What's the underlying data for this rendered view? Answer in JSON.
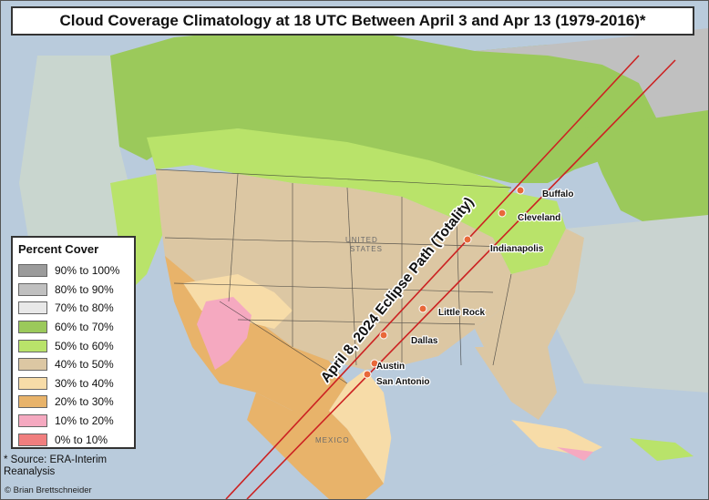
{
  "title": "Cloud Coverage Climatology at 18 UTC Between April 3 and Apr 13 (1979-2016)*",
  "legend": {
    "title": "Percent Cover",
    "items": [
      {
        "label": "90% to 100%",
        "color": "#9b9b9b"
      },
      {
        "label": "80% to 90%",
        "color": "#c0c0c0"
      },
      {
        "label": "70% to 80%",
        "color": "#e8e8e8"
      },
      {
        "label": "60% to 70%",
        "color": "#9bc95b"
      },
      {
        "label": "50% to 60%",
        "color": "#b9e36a"
      },
      {
        "label": "40% to 50%",
        "color": "#dcc7a3"
      },
      {
        "label": "30% to 40%",
        "color": "#f7dca8"
      },
      {
        "label": "20% to 30%",
        "color": "#e8b36a"
      },
      {
        "label": "10% to 20%",
        "color": "#f5a9c0"
      },
      {
        "label": "0% to 10%",
        "color": "#f07e7e"
      }
    ]
  },
  "source": "* Source: ERA-Interim Reanalysis",
  "credit": "© Brian Brettschneider",
  "eclipse_path_label": "April 8, 2024 Eclipse Path (Totality)",
  "country_labels": {
    "us_1": "UNITED",
    "us_2": "STATES",
    "mexico": "MEXICO"
  },
  "cities": [
    {
      "name": "Buffalo"
    },
    {
      "name": "Cleveland"
    },
    {
      "name": "Indianapolis"
    },
    {
      "name": "Little Rock"
    },
    {
      "name": "Dallas"
    },
    {
      "name": "Austin"
    },
    {
      "name": "San Antonio"
    }
  ],
  "colors": {
    "ocean": "#b9cbdc",
    "path_line": "#cc2222",
    "city_marker": "#e8683a"
  }
}
